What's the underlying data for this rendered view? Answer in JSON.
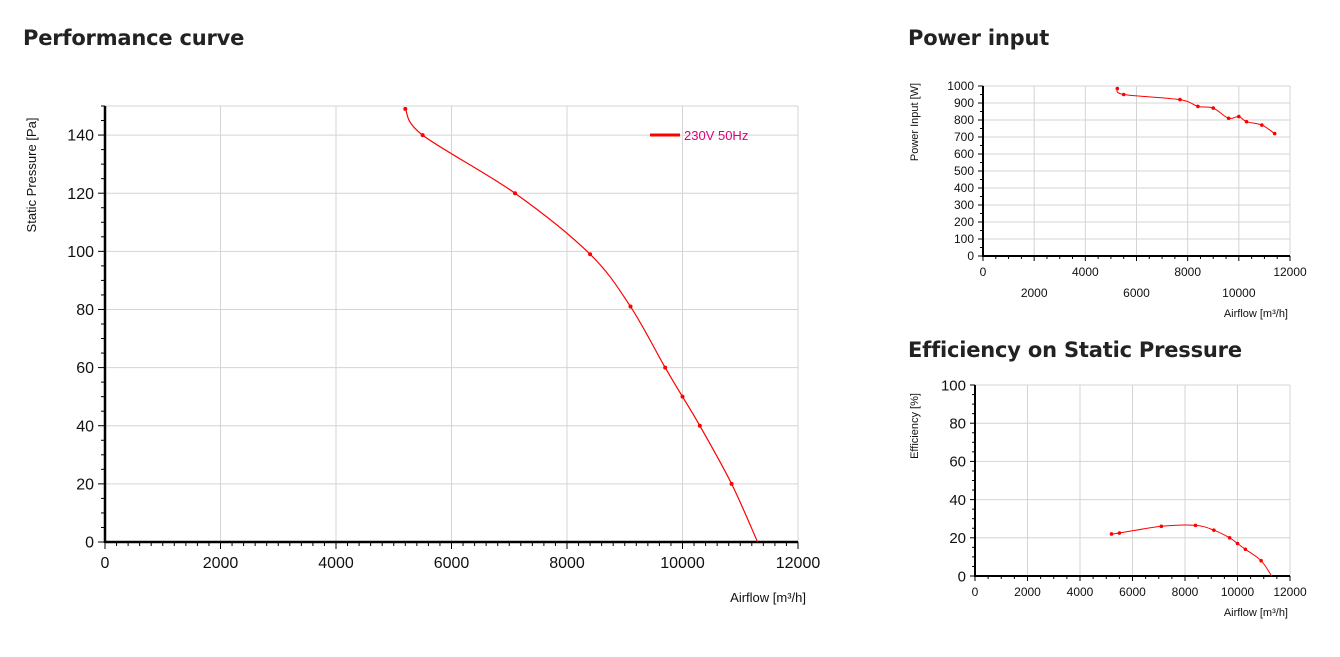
{
  "headings": {
    "performance": "Performance curve",
    "power": "Power input",
    "efficiency": "Efficiency on Static Pressure"
  },
  "colors": {
    "series": "#ff0000",
    "legend_text": "#e0007a",
    "grid": "#d4d4d4",
    "axis": "#000000"
  },
  "chart_data": [
    {
      "id": "performance",
      "type": "line",
      "title": "Performance curve",
      "xlabel": "Airflow [m³/h]",
      "ylabel": "Static Pressure [Pa]",
      "xlim": [
        0,
        12000
      ],
      "ylim": [
        0,
        150
      ],
      "x_ticks": [
        0,
        2000,
        4000,
        6000,
        8000,
        10000,
        12000
      ],
      "y_ticks": [
        0,
        20,
        40,
        60,
        80,
        100,
        120,
        140
      ],
      "grid": true,
      "legend_position": "top-right",
      "series": [
        {
          "name": "230V 50Hz",
          "x": [
            5200,
            5500,
            7100,
            8400,
            9100,
            9700,
            10000,
            10300,
            10850,
            11300
          ],
          "y": [
            149,
            140,
            120,
            99,
            81,
            60,
            50,
            40,
            20,
            0
          ]
        }
      ]
    },
    {
      "id": "power",
      "type": "line",
      "title": "Power input",
      "xlabel": "Airflow [m³/h]",
      "ylabel": "Power Input [W]",
      "xlim": [
        0,
        12000
      ],
      "ylim": [
        0,
        1000
      ],
      "x_ticks": [
        0,
        2000,
        4000,
        6000,
        8000,
        10000,
        12000
      ],
      "y_ticks": [
        0,
        100,
        200,
        300,
        400,
        500,
        600,
        700,
        800,
        900,
        1000
      ],
      "grid": true,
      "series": [
        {
          "x": [
            5250,
            5500,
            7700,
            8400,
            9000,
            9600,
            10000,
            10300,
            10900,
            11400
          ],
          "y": [
            985,
            950,
            920,
            880,
            870,
            810,
            820,
            790,
            770,
            720
          ]
        }
      ]
    },
    {
      "id": "efficiency",
      "type": "line",
      "title": "Efficiency on Static Pressure",
      "xlabel": "Airflow [m³/h]",
      "ylabel": "Efficiency [%]",
      "xlim": [
        0,
        12000
      ],
      "ylim": [
        0,
        100
      ],
      "x_ticks": [
        0,
        2000,
        4000,
        6000,
        8000,
        10000,
        12000
      ],
      "y_ticks": [
        0,
        20,
        40,
        60,
        80,
        100
      ],
      "grid": true,
      "series": [
        {
          "x": [
            5200,
            5500,
            7100,
            8400,
            9100,
            9700,
            10000,
            10300,
            10900,
            11300
          ],
          "y": [
            22,
            22.5,
            26,
            26.5,
            24,
            20,
            17,
            14,
            8,
            0
          ]
        }
      ]
    }
  ]
}
